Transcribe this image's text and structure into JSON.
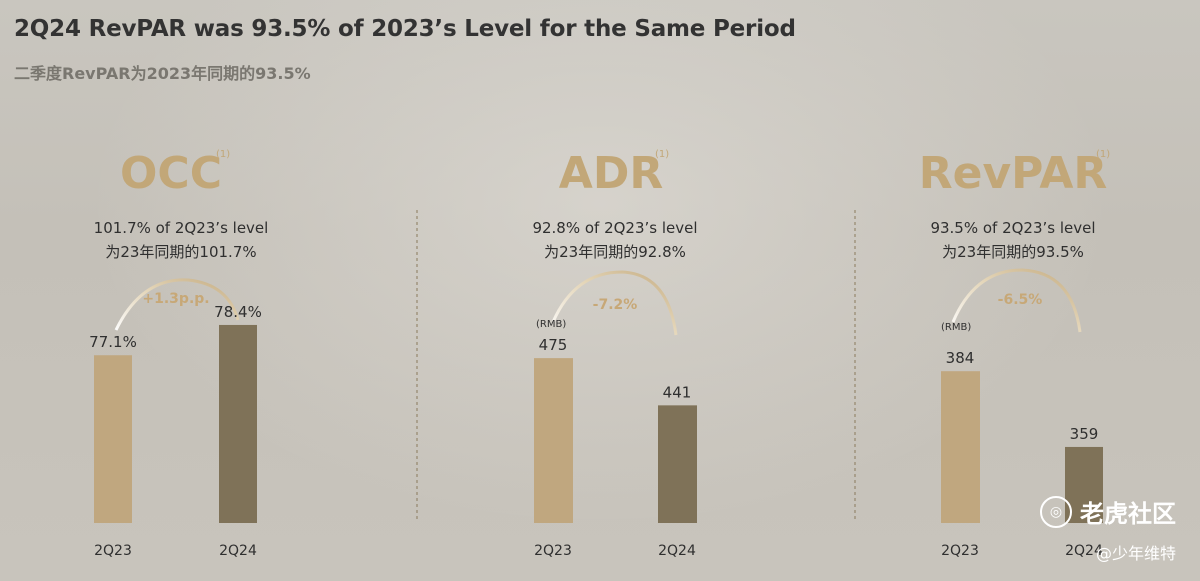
{
  "title": "2Q24 RevPAR was 93.5% of 2023’s Level for the Same Period",
  "subtitle": "二季度RevPAR为2023年同期的93.5%",
  "colors": {
    "bar_2q23": "#c0a77f",
    "bar_2q24": "#7f7258",
    "accent": "#c2a778"
  },
  "chart_data": [
    {
      "type": "bar",
      "metric": "OCC",
      "footnote": "(1)",
      "level_en": "101.7% of 2Q23’s level",
      "level_cn": "为23年同期的101.7%",
      "change_label": "+1.3p.p.",
      "unit": "",
      "categories": [
        "2Q23",
        "2Q24"
      ],
      "values": [
        77.1,
        78.4
      ],
      "value_labels": [
        "77.1%",
        "78.4%"
      ]
    },
    {
      "type": "bar",
      "metric": "ADR",
      "footnote": "(1)",
      "level_en": "92.8% of 2Q23’s level",
      "level_cn": "为23年同期的92.8%",
      "change_label": "-7.2%",
      "unit": "(RMB)",
      "categories": [
        "2Q23",
        "2Q24"
      ],
      "values": [
        475,
        441
      ],
      "value_labels": [
        "475",
        "441"
      ]
    },
    {
      "type": "bar",
      "metric": "RevPAR",
      "footnote": "(1)",
      "level_en": "93.5% of 2Q23’s level",
      "level_cn": "为23年同期的93.5%",
      "change_label": "-6.5%",
      "unit": "(RMB)",
      "categories": [
        "2Q23",
        "2Q24"
      ],
      "values": [
        384,
        359
      ],
      "value_labels": [
        "384",
        "359"
      ]
    }
  ],
  "watermark": {
    "icon": "tiger-logo-icon",
    "icon_glyph": "◎",
    "text": "老虎社区",
    "credit": "@少年维特"
  }
}
